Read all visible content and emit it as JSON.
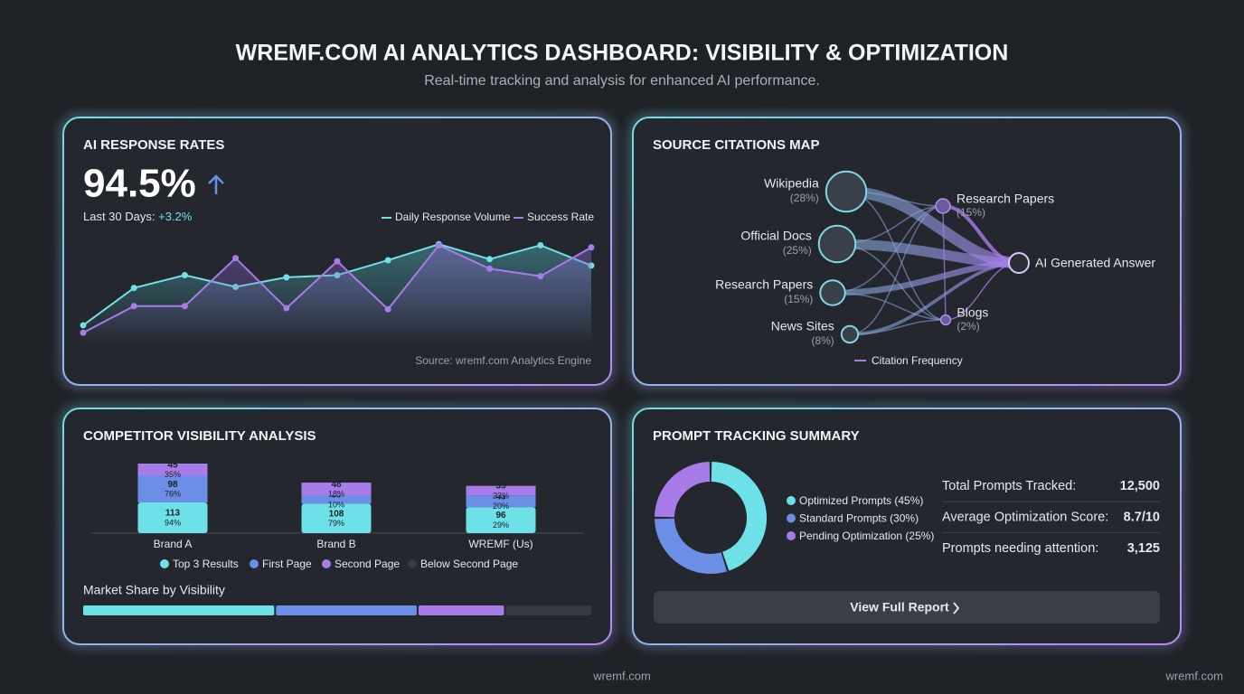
{
  "header": {
    "title": "WREMF.COM AI ANALYTICS DASHBOARD: VISIBILITY & OPTIMIZATION",
    "subtitle": "Real-time tracking and analysis for enhanced AI performance."
  },
  "response_rates": {
    "title": "AI RESPONSE RATES",
    "kpi": "94.5%",
    "period": "Last 30 Days:",
    "change": "+3.2%",
    "source": "Source: wremf.com Analytics Engine",
    "chart": {
      "type": "line",
      "ylim": [
        0,
        100
      ],
      "series": [
        {
          "name": "Daily Response Volume",
          "color": "#6ee0e8",
          "values": [
            17,
            52,
            64,
            53,
            62,
            64,
            78,
            93,
            79,
            92,
            73
          ]
        },
        {
          "name": "Success Rate",
          "color": "#a77ce8",
          "values": [
            10,
            35,
            35,
            80,
            33,
            77,
            32,
            92,
            70,
            63,
            90
          ]
        }
      ]
    }
  },
  "citations": {
    "title": "SOURCE CITATIONS MAP",
    "sources": {
      "names": [
        "Wikipedia",
        "Official Docs",
        "Research Papers",
        "News Sites"
      ],
      "values": [
        28,
        25,
        15,
        8
      ],
      "value_labels": [
        "(28%)",
        "(25%)",
        "(15%)",
        "(8%)"
      ]
    },
    "targets": {
      "names": [
        "Research Papers",
        "Blogs"
      ],
      "values": [
        15,
        2
      ],
      "value_labels": [
        "(15%)",
        "(2%)"
      ]
    },
    "answer": "AI Generated Answer",
    "legend": "Citation Frequency"
  },
  "competitors": {
    "title": "COMPETITOR VISIBILITY ANALYSIS",
    "chart": {
      "type": "stacked-bar",
      "categories": [
        "Brand A",
        "Brand B",
        "WREMF (Us)"
      ],
      "series": [
        {
          "name": "Top 3 Results",
          "color": "#6ee0e8",
          "values": [
            113,
            108,
            96
          ],
          "value_labels": [
            "94%",
            "79%",
            "29%"
          ]
        },
        {
          "name": "First Page",
          "color": "#6b8fe6",
          "values": [
            98,
            30,
            43
          ],
          "value_labels": [
            "76%",
            "10%",
            "20%"
          ]
        },
        {
          "name": "Second Page",
          "color": "#a77ce8",
          "values": [
            45,
            48,
            35
          ],
          "value_labels": [
            "35%",
            "18%",
            "23%"
          ]
        },
        {
          "name": "Below Second Page",
          "color": "#353a44"
        }
      ]
    },
    "market_share": {
      "title": "Market Share by Visibility",
      "values": [
        38,
        28,
        17,
        17
      ]
    }
  },
  "prompts": {
    "title": "PROMPT TRACKING SUMMARY",
    "chart": {
      "type": "donut",
      "names": [
        "Optimized Prompts",
        "Standard Prompts",
        "Pending Optimization"
      ],
      "values": [
        45,
        30,
        25
      ],
      "value_labels": [
        "(45%)",
        "(30%)",
        "(25%)"
      ],
      "colors": [
        "#6ee0e8",
        "#6b8fe6",
        "#a77ce8"
      ]
    },
    "stats": [
      [
        "Total Prompts Tracked:",
        "12,500"
      ],
      [
        "Average Optimization Score:",
        "8.7/10"
      ],
      [
        "Prompts needing attention:",
        "3,125"
      ]
    ],
    "button": "View Full Report"
  },
  "footer": {
    "center": "wremf.com",
    "right": "wremf.com"
  }
}
